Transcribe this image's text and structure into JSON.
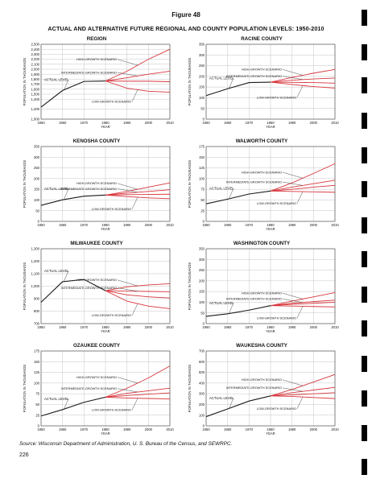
{
  "figure_label": "Figure 48",
  "title": "ACTUAL AND ALTERNATIVE FUTURE REGIONAL AND COUNTY POPULATION LEVELS: 1950-2010",
  "source": "Source: Wisconsin Department of Administration, U. S. Bureau of the Census, and SEWRPC.",
  "page_number": "226",
  "colors": {
    "actual": "#1a1a1a",
    "scenario": "#d8363d",
    "grid": "#bdbdbd"
  },
  "chart_data": [
    {
      "type": "line",
      "title": "REGION",
      "xlabel": "YEAR",
      "ylabel": "POPULATION IN THOUSANDS",
      "x_ticks": [
        "1950",
        "1960",
        "1970",
        "1980",
        "1990",
        "2000",
        "2010"
      ],
      "xlim": [
        1950,
        2010
      ],
      "y_ticks": [
        "1,000",
        "1,200",
        "1,400",
        "1,500",
        "1,600",
        "1,700",
        "1,800",
        "1,900",
        "2,000",
        "2,100",
        "2,200",
        "2,300",
        "2,400",
        "2,500"
      ],
      "actual": {
        "label": "ACTUAL LEVEL",
        "x": [
          1950,
          1960,
          1970,
          1980
        ],
        "y": [
          1240,
          1574,
          1756,
          1764
        ]
      },
      "scenarios": [
        {
          "label": "HIGH-GROWTH SCENARIO",
          "x": [
            1980,
            1990,
            2000,
            2010
          ],
          "y": [
            1764,
            1960,
            2200,
            2400
          ]
        },
        {
          "label": "INTERMEDIATE-GROWTH SCENARIO",
          "x": [
            1980,
            1990,
            2000,
            2010
          ],
          "y": [
            1764,
            1830,
            1900,
            1960
          ]
        },
        {
          "label": "",
          "x": [
            1980,
            1990,
            2000,
            2010
          ],
          "y": [
            1764,
            1760,
            1760,
            1750
          ]
        },
        {
          "label": "LOW-GROWTH SCENARIO",
          "x": [
            1980,
            1990,
            2000,
            2010
          ],
          "y": [
            1764,
            1620,
            1560,
            1540
          ]
        }
      ]
    },
    {
      "type": "line",
      "title": "RACINE COUNTY",
      "xlabel": "YEAR",
      "ylabel": "POPULATION IN THOUSANDS",
      "x_ticks": [
        "1950",
        "1960",
        "1970",
        "1980",
        "1990",
        "2000",
        "2010"
      ],
      "xlim": [
        1950,
        2010
      ],
      "y_ticks": [
        "0",
        "50",
        "100",
        "150",
        "200",
        "250",
        "300",
        "350"
      ],
      "ylim": [
        0,
        350
      ],
      "actual": {
        "label": "ACTUAL LEVEL",
        "x": [
          1950,
          1960,
          1970,
          1980
        ],
        "y": [
          110,
          142,
          171,
          173
        ]
      },
      "scenarios": [
        {
          "label": "HIGH-GROWTH SCENARIO",
          "x": [
            1980,
            1990,
            2000,
            2010
          ],
          "y": [
            173,
            195,
            215,
            232
          ]
        },
        {
          "label": "INTERMEDIATE-GROWTH SCENARIO",
          "x": [
            1980,
            1990,
            2000,
            2010
          ],
          "y": [
            173,
            182,
            188,
            192
          ]
        },
        {
          "label": "",
          "x": [
            1980,
            1990,
            2000,
            2010
          ],
          "y": [
            173,
            172,
            171,
            168
          ]
        },
        {
          "label": "LOW-GROWTH SCENARIO",
          "x": [
            1980,
            1990,
            2000,
            2010
          ],
          "y": [
            173,
            162,
            152,
            145
          ]
        }
      ]
    },
    {
      "type": "line",
      "title": "KENOSHA COUNTY",
      "xlabel": "YEAR",
      "ylabel": "POPULATION IN THOUSANDS",
      "x_ticks": [
        "1950",
        "1960",
        "1970",
        "1980",
        "1990",
        "2000",
        "2010"
      ],
      "xlim": [
        1950,
        2010
      ],
      "y_ticks": [
        "0",
        "50",
        "100",
        "150",
        "200",
        "250",
        "300",
        "350"
      ],
      "ylim": [
        0,
        350
      ],
      "actual": {
        "label": "ACTUAL LEVEL",
        "x": [
          1950,
          1960,
          1970,
          1980
        ],
        "y": [
          75,
          101,
          118,
          123
        ]
      },
      "scenarios": [
        {
          "label": "HIGH-GROWTH SCENARIO",
          "x": [
            1980,
            1990,
            2000,
            2010
          ],
          "y": [
            123,
            140,
            160,
            180
          ]
        },
        {
          "label": "INTERMEDIATE-GROWTH SCENARIO",
          "x": [
            1980,
            1990,
            2000,
            2010
          ],
          "y": [
            123,
            132,
            140,
            148
          ]
        },
        {
          "label": "",
          "x": [
            1980,
            1990,
            2000,
            2010
          ],
          "y": [
            123,
            125,
            126,
            127
          ]
        },
        {
          "label": "LOW-GROWTH SCENARIO",
          "x": [
            1980,
            1990,
            2000,
            2010
          ],
          "y": [
            123,
            116,
            110,
            106
          ]
        }
      ]
    },
    {
      "type": "line",
      "title": "WALWORTH COUNTY",
      "xlabel": "YEAR",
      "ylabel": "POPULATION IN THOUSANDS",
      "x_ticks": [
        "1950",
        "1960",
        "1970",
        "1980",
        "1990",
        "2000",
        "2010"
      ],
      "xlim": [
        1950,
        2010
      ],
      "y_ticks": [
        "0",
        "25",
        "50",
        "75",
        "100",
        "125",
        "150",
        "175"
      ],
      "ylim": [
        0,
        175
      ],
      "actual": {
        "label": "ACTUAL LEVEL",
        "x": [
          1950,
          1960,
          1970,
          1980
        ],
        "y": [
          41,
          52,
          64,
          71
        ]
      },
      "scenarios": [
        {
          "label": "HIGH-GROWTH SCENARIO",
          "x": [
            1980,
            1990,
            2000,
            2010
          ],
          "y": [
            71,
            90,
            112,
            135
          ]
        },
        {
          "label": "INTERMEDIATE-GROWTH SCENARIO",
          "x": [
            1980,
            1990,
            2000,
            2010
          ],
          "y": [
            71,
            80,
            88,
            96
          ]
        },
        {
          "label": "",
          "x": [
            1980,
            1990,
            2000,
            2010
          ],
          "y": [
            71,
            75,
            80,
            84
          ]
        },
        {
          "label": "LOW-GROWTH SCENARIO",
          "x": [
            1980,
            1990,
            2000,
            2010
          ],
          "y": [
            71,
            70,
            69,
            68
          ]
        }
      ]
    },
    {
      "type": "line",
      "title": "MILWAUKEE COUNTY",
      "xlabel": "YEAR",
      "ylabel": "POPULATION IN THOUSANDS",
      "x_ticks": [
        "1950",
        "1960",
        "1970",
        "1980",
        "1990",
        "2000",
        "2010"
      ],
      "xlim": [
        1950,
        2010
      ],
      "y_ticks": [
        "700",
        "800",
        "900",
        "1,000",
        "1,100",
        "1,200",
        "1,300"
      ],
      "ylim": [
        700,
        1300
      ],
      "actual": {
        "label": "ACTUAL LEVEL",
        "x": [
          1950,
          1960,
          1970,
          1980
        ],
        "y": [
          871,
          1036,
          1054,
          964
        ]
      },
      "scenarios": [
        {
          "label": "HIGH-GROWTH SCENARIO",
          "x": [
            1980,
            1990,
            2000,
            2010
          ],
          "y": [
            964,
            995,
            1010,
            1020
          ]
        },
        {
          "label": "INTERMEDIATE-GROWTH SCENARIO",
          "x": [
            1980,
            1990,
            2000,
            2010
          ],
          "y": [
            964,
            960,
            958,
            955
          ]
        },
        {
          "label": "",
          "x": [
            1980,
            1990,
            2000,
            2010
          ],
          "y": [
            964,
            930,
            915,
            905
          ]
        },
        {
          "label": "LOW-GROWTH SCENARIO",
          "x": [
            1980,
            1990,
            2000,
            2010
          ],
          "y": [
            964,
            880,
            840,
            820
          ]
        }
      ]
    },
    {
      "type": "line",
      "title": "WASHINGTON COUNTY",
      "xlabel": "YEAR",
      "ylabel": "POPULATION IN THOUSANDS",
      "x_ticks": [
        "1950",
        "1960",
        "1970",
        "1980",
        "1990",
        "2000",
        "2010"
      ],
      "xlim": [
        1950,
        2010
      ],
      "y_ticks": [
        "0",
        "50",
        "100",
        "150",
        "200",
        "250",
        "300",
        "350"
      ],
      "ylim": [
        0,
        350
      ],
      "actual": {
        "label": "ACTUAL LEVEL",
        "x": [
          1950,
          1960,
          1970,
          1980
        ],
        "y": [
          34,
          46,
          63,
          84
        ]
      },
      "scenarios": [
        {
          "label": "HIGH-GROWTH SCENARIO",
          "x": [
            1980,
            1990,
            2000,
            2010
          ],
          "y": [
            84,
            105,
            125,
            145
          ]
        },
        {
          "label": "INTERMEDIATE-GROWTH SCENARIO",
          "x": [
            1980,
            1990,
            2000,
            2010
          ],
          "y": [
            84,
            95,
            103,
            110
          ]
        },
        {
          "label": "",
          "x": [
            1980,
            1990,
            2000,
            2010
          ],
          "y": [
            84,
            90,
            95,
            100
          ]
        },
        {
          "label": "LOW-GROWTH SCENARIO",
          "x": [
            1980,
            1990,
            2000,
            2010
          ],
          "y": [
            84,
            82,
            80,
            78
          ]
        }
      ]
    },
    {
      "type": "line",
      "title": "OZAUKEE COUNTY",
      "xlabel": "YEAR",
      "ylabel": "POPULATION IN THOUSANDS",
      "x_ticks": [
        "1950",
        "1960",
        "1970",
        "1980",
        "1990",
        "2000",
        "2010"
      ],
      "xlim": [
        1950,
        2010
      ],
      "y_ticks": [
        "0",
        "25",
        "50",
        "75",
        "100",
        "125",
        "150",
        "175"
      ],
      "ylim": [
        0,
        175
      ],
      "actual": {
        "label": "ACTUAL LEVEL",
        "x": [
          1950,
          1960,
          1970,
          1980
        ],
        "y": [
          23,
          38,
          55,
          67
        ]
      },
      "scenarios": [
        {
          "label": "HIGH-GROWTH SCENARIO",
          "x": [
            1980,
            1990,
            2000,
            2010
          ],
          "y": [
            67,
            88,
            112,
            140
          ]
        },
        {
          "label": "INTERMEDIATE-GROWTH SCENARIO",
          "x": [
            1980,
            1990,
            2000,
            2010
          ],
          "y": [
            67,
            76,
            82,
            88
          ]
        },
        {
          "label": "",
          "x": [
            1980,
            1990,
            2000,
            2010
          ],
          "y": [
            67,
            71,
            74,
            77
          ]
        },
        {
          "label": "LOW-GROWTH SCENARIO",
          "x": [
            1980,
            1990,
            2000,
            2010
          ],
          "y": [
            67,
            65,
            64,
            63
          ]
        }
      ]
    },
    {
      "type": "line",
      "title": "WAUKESHA COUNTY",
      "xlabel": "YEAR",
      "ylabel": "POPULATION IN THOUSANDS",
      "x_ticks": [
        "1950",
        "1960",
        "1970",
        "1980",
        "1990",
        "2000",
        "2010"
      ],
      "xlim": [
        1950,
        2010
      ],
      "y_ticks": [
        "0",
        "100",
        "200",
        "300",
        "400",
        "500",
        "600",
        "700"
      ],
      "ylim": [
        0,
        700
      ],
      "actual": {
        "label": "ACTUAL LEVEL",
        "x": [
          1950,
          1960,
          1970,
          1980
        ],
        "y": [
          86,
          158,
          232,
          280
        ]
      },
      "scenarios": [
        {
          "label": "HIGH-GROWTH SCENARIO",
          "x": [
            1980,
            1990,
            2000,
            2010
          ],
          "y": [
            280,
            340,
            410,
            480
          ]
        },
        {
          "label": "INTERMEDIATE-GROWTH SCENARIO",
          "x": [
            1980,
            1990,
            2000,
            2010
          ],
          "y": [
            280,
            310,
            335,
            360
          ]
        },
        {
          "label": "",
          "x": [
            1980,
            1990,
            2000,
            2010
          ],
          "y": [
            280,
            290,
            300,
            310
          ]
        },
        {
          "label": "LOW-GROWTH SCENARIO",
          "x": [
            1980,
            1990,
            2000,
            2010
          ],
          "y": [
            280,
            275,
            265,
            255
          ]
        }
      ]
    }
  ]
}
